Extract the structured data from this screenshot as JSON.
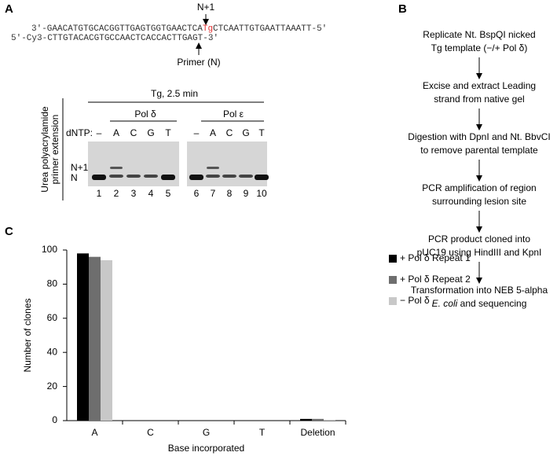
{
  "panel_a": {
    "label": "A",
    "arrow_top_label": "N+1",
    "template_strand": {
      "left": "3′-GAACATGTGCACGGTTGAGTGGTGAACTCA",
      "lesion": "Tg",
      "right": "CTCAATTGTGAATTAAATT-5′"
    },
    "primer_strand": "5′-Cy3-CTTGTACACGTGCCAACTCACCACTTGAGT-3′",
    "primer_label": "Primer (N)",
    "side_label": [
      "Urea polyacrylamide",
      "primer extension"
    ],
    "gel_title": "Tg, 2.5 min",
    "dntp_label": "dNTP:",
    "polymerases": [
      "Pol δ",
      "Pol ε"
    ],
    "dntps": [
      "–",
      "A",
      "C",
      "G",
      "T",
      "–",
      "A",
      "C",
      "G",
      "T"
    ],
    "band_labels": [
      "N+1",
      "N"
    ],
    "lanes": [
      "1",
      "2",
      "3",
      "4",
      "5",
      "6",
      "7",
      "8",
      "9",
      "10"
    ]
  },
  "panel_b": {
    "label": "B",
    "steps": [
      [
        "Replicate Nt. BspQI nicked",
        "Tg template (−/+ Pol δ)"
      ],
      [
        "Excise and extract Leading",
        "strand from native gel"
      ],
      [
        "Digestion with DpnI and Nt. BbvCI",
        "to remove parental template"
      ],
      [
        "PCR amplification of region",
        "surrounding lesion site"
      ],
      [
        "PCR product cloned into",
        "pUC19 using HindIII and KpnI"
      ],
      [
        "Transformation into NEB 5-alpha",
        "E. coli",
        "and sequencing"
      ]
    ]
  },
  "panel_c_label": "C",
  "chart_data": {
    "type": "bar",
    "x_label": "Base incorporated",
    "y_label": "Number of clones",
    "categories": [
      "A",
      "C",
      "G",
      "T",
      "Deletion"
    ],
    "series": [
      {
        "name": "+ Pol δ Repeat 1",
        "color": "#000000",
        "values": [
          98,
          0,
          0,
          0,
          1
        ]
      },
      {
        "name": "+ Pol δ Repeat 2",
        "color": "#6e6e6e",
        "values": [
          96,
          0,
          0,
          0,
          1
        ]
      },
      {
        "name": "− Pol δ",
        "color": "#c8c8c8",
        "values": [
          94,
          0,
          0,
          0,
          0.5
        ]
      }
    ],
    "ylim": [
      0,
      100
    ],
    "yticks": [
      0,
      20,
      40,
      60,
      80,
      100
    ]
  }
}
